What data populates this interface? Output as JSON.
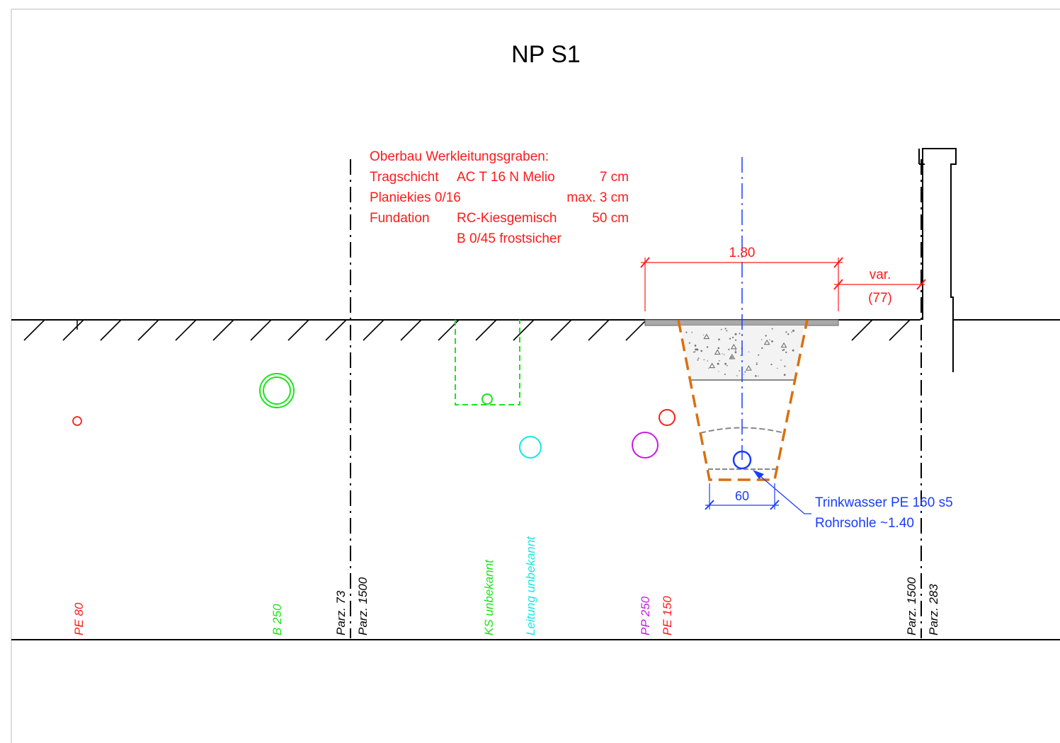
{
  "title": "NP S1",
  "oberbau": {
    "heading": "Oberbau Werkleitungsgraben:",
    "rows": [
      {
        "c1": "Tragschicht",
        "c2": "AC T 16 N Melio",
        "c3": "7 cm"
      },
      {
        "c1": "Planiekies 0/16",
        "c2": "",
        "c3": "max. 3 cm"
      },
      {
        "c1": "Fundation",
        "c2": "RC-Kiesgemisch",
        "c3": "50 cm"
      },
      {
        "c1": "",
        "c2": "B 0/45 frostsicher",
        "c3": ""
      }
    ]
  },
  "dimensions": {
    "width_top": "1.80",
    "var_label": "var.",
    "var_value": "(77)",
    "bottom_width": "60"
  },
  "pipe_note": {
    "line1": "Trinkwasser PE 160 s5",
    "line2": "Rohrsohle ~1.40"
  },
  "labels": {
    "pe80": "PE 80",
    "b250": "B 250",
    "parz73": "Parz. 73",
    "parz1500_left": "Parz. 1500",
    "ks": "KS unbekannt",
    "leitung": "Leitung unbekannt",
    "pp250": "PP 250",
    "pe150": "PE 150",
    "parz1500_right": "Parz. 1500",
    "parz283": "Parz. 283"
  },
  "colors": {
    "red": "#ff1a1a",
    "green": "#19e619",
    "cyan": "#19e6e6",
    "magenta": "#cc19e6",
    "blue": "#1a3cff",
    "orange": "#d9700f",
    "gray": "#999999"
  }
}
